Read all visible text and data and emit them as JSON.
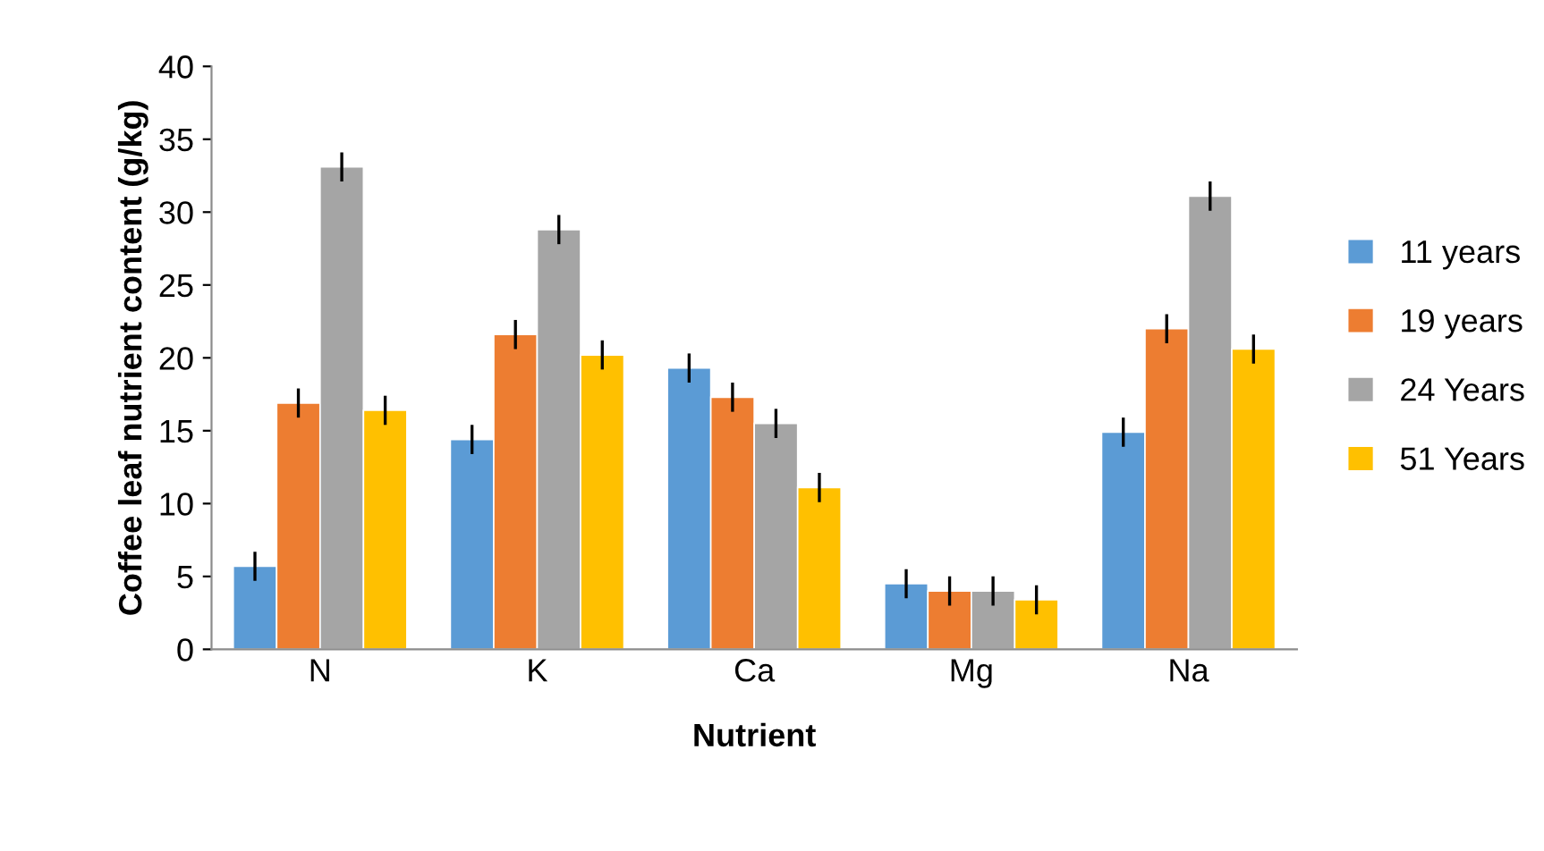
{
  "chart_data": {
    "type": "bar",
    "xlabel": "Nutrient",
    "ylabel": "Coffee leaf nutrient content (g/kg)",
    "categories": [
      "N",
      "K",
      "Ca",
      "Mg",
      "Na"
    ],
    "series": [
      {
        "name": "11 years",
        "color": "#5b9bd5",
        "values": [
          5.7,
          14.4,
          19.3,
          4.5,
          14.9
        ],
        "errors": [
          1,
          1,
          1,
          1,
          1
        ]
      },
      {
        "name": "19 years",
        "color": "#ed7d31",
        "values": [
          16.9,
          21.6,
          17.3,
          4.0,
          22.0
        ],
        "errors": [
          1,
          1,
          1,
          1,
          1
        ]
      },
      {
        "name": "24 Years",
        "color": "#a5a5a5",
        "values": [
          33.1,
          28.8,
          15.5,
          4.0,
          31.1
        ],
        "errors": [
          1,
          1,
          1,
          1,
          1
        ]
      },
      {
        "name": "51 Years",
        "color": "#ffc000",
        "values": [
          16.4,
          20.2,
          11.1,
          3.4,
          20.6
        ],
        "errors": [
          1,
          1,
          1,
          1,
          1
        ]
      }
    ],
    "ylim": [
      0,
      40
    ],
    "yticks": [
      0,
      5,
      10,
      15,
      20,
      25,
      30,
      35,
      40
    ],
    "grid": false,
    "legend": "right"
  }
}
